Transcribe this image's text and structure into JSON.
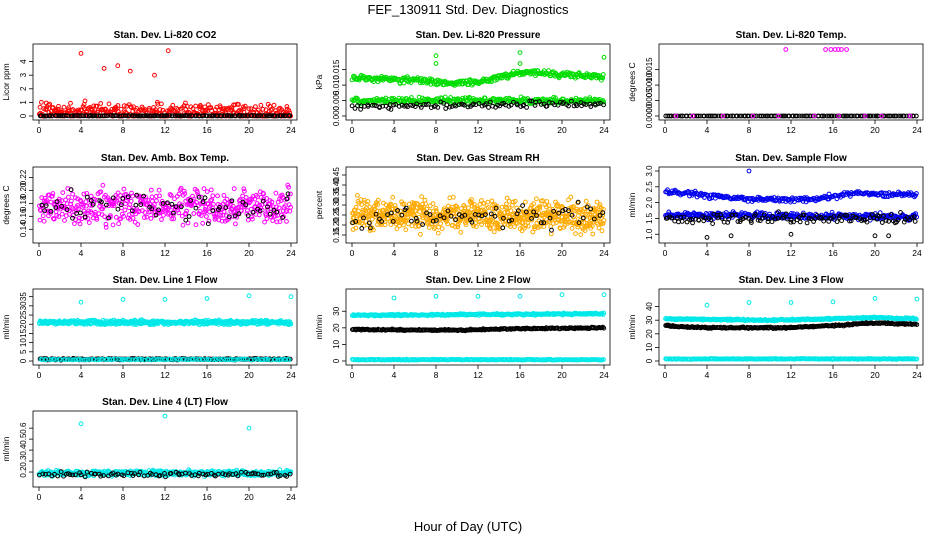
{
  "figure": {
    "title": "FEF_130911  Std. Dev. Diagnostics",
    "xlabel": "Hour of Day (UTC)"
  },
  "chart_data": [
    {
      "type": "scatter",
      "title": "Stan. Dev. Li-820 CO2",
      "ylabel": "Licor ppm",
      "xlim": [
        0,
        24
      ],
      "ylim": [
        0,
        5
      ],
      "x_ticks": [
        0,
        4,
        8,
        12,
        16,
        20,
        24
      ],
      "y_ticks": [
        0,
        1,
        2,
        3,
        4
      ],
      "series": [
        {
          "color": "#ff0000",
          "pattern": "noisy",
          "points": [
            [
              0.1,
              0.3
            ],
            [
              24,
              0.2
            ]
          ],
          "noise": 1.0,
          "n": 380,
          "outliers": [
            [
              4,
              4.6
            ],
            [
              12.3,
              4.8
            ],
            [
              6.2,
              3.5
            ],
            [
              8.7,
              3.3
            ],
            [
              11,
              3.0
            ],
            [
              7.5,
              3.7
            ]
          ]
        },
        {
          "color": "#000000",
          "pattern": "noisy",
          "points": [
            [
              0.1,
              0.02
            ],
            [
              24,
              0.02
            ]
          ],
          "noise": 0.03,
          "n": 140
        }
      ]
    },
    {
      "type": "scatter",
      "title": "Stan. Dev. Li-820 Pressure",
      "ylabel": "kPa",
      "xlim": [
        0,
        24
      ],
      "ylim": [
        0,
        0.022
      ],
      "x_ticks": [
        0,
        4,
        8,
        12,
        16,
        20,
        24
      ],
      "y_ticks": [
        0.0,
        0.005,
        0.01,
        0.015
      ],
      "series": [
        {
          "color": "#00dd00",
          "pattern": "noisy",
          "points": [
            [
              0,
              0.0125
            ],
            [
              6,
              0.0115
            ],
            [
              9,
              0.0105
            ],
            [
              12,
              0.011
            ],
            [
              16,
              0.014
            ],
            [
              20,
              0.0135
            ],
            [
              24,
              0.0125
            ]
          ],
          "noise": 0.0015,
          "n": 330,
          "outliers": [
            [
              8,
              0.0195
            ],
            [
              16,
              0.0205
            ],
            [
              24,
              0.019
            ],
            [
              8,
              0.017
            ],
            [
              16,
              0.017
            ]
          ]
        },
        {
          "color": "#00dd00",
          "pattern": "noisy",
          "points": [
            [
              0,
              0.005
            ],
            [
              24,
              0.005
            ]
          ],
          "noise": 0.0015,
          "n": 300
        },
        {
          "color": "#000000",
          "pattern": "noisy",
          "points": [
            [
              0,
              0.003
            ],
            [
              24,
              0.004
            ]
          ],
          "noise": 0.0015,
          "n": 110
        }
      ]
    },
    {
      "type": "scatter",
      "title": "Stan. Dev. Li-820 Temp.",
      "ylabel": "degrees C",
      "xlim": [
        0,
        24
      ],
      "ylim": [
        0,
        0.0022
      ],
      "x_ticks": [
        0,
        4,
        8,
        12,
        16,
        20,
        24
      ],
      "y_ticks": [
        0.0,
        0.0005,
        0.001,
        0.0015
      ],
      "series": [
        {
          "color": "#000000",
          "pattern": "noisy",
          "points": [
            [
              0,
              0
            ],
            [
              24,
              0
            ]
          ],
          "noise": 0.0,
          "n": 130
        },
        {
          "color": "#ff00ff",
          "pattern": "noisy",
          "points": [
            [
              0,
              0
            ],
            [
              24,
              0
            ]
          ],
          "noise": 0.0,
          "n": 10,
          "outliers": [
            [
              11.5,
              0.00215
            ],
            [
              15.3,
              0.00215
            ],
            [
              16.2,
              0.00215
            ],
            [
              16.8,
              0.00215
            ],
            [
              17.3,
              0.00215
            ],
            [
              16.5,
              0.00215
            ],
            [
              15.8,
              0.00215
            ]
          ]
        }
      ]
    },
    {
      "type": "scatter",
      "title": "Stan. Dev. Amb. Box Temp.",
      "ylabel": "degrees C",
      "xlim": [
        0,
        24
      ],
      "ylim": [
        0.125,
        0.23
      ],
      "x_ticks": [
        0,
        4,
        8,
        12,
        16,
        20,
        24
      ],
      "y_ticks": [
        0.14,
        0.16,
        0.18,
        0.2,
        0.22
      ],
      "series": [
        {
          "color": "#ff00ff",
          "pattern": "noisy",
          "points": [
            [
              0,
              0.175
            ],
            [
              24,
              0.175
            ]
          ],
          "noise": 0.04,
          "n": 470
        },
        {
          "color": "#000000",
          "pattern": "noisy",
          "points": [
            [
              0,
              0.175
            ],
            [
              24,
              0.175
            ]
          ],
          "noise": 0.035,
          "n": 70
        }
      ]
    },
    {
      "type": "scatter",
      "title": "Stan. Dev. Gas Stream RH",
      "ylabel": "percent",
      "xlim": [
        0,
        24
      ],
      "ylim": [
        0.13,
        0.47
      ],
      "x_ticks": [
        0,
        4,
        8,
        12,
        16,
        20,
        24
      ],
      "y_ticks": [
        0.15,
        0.2,
        0.25,
        0.3,
        0.35,
        0.4,
        0.45
      ],
      "series": [
        {
          "color": "#ffaa00",
          "pattern": "noisy",
          "points": [
            [
              0,
              0.25
            ],
            [
              24,
              0.24
            ]
          ],
          "noise": 0.11,
          "n": 700
        },
        {
          "color": "#000000",
          "pattern": "noisy",
          "points": [
            [
              0,
              0.24
            ],
            [
              24,
              0.24
            ]
          ],
          "noise": 0.09,
          "n": 70
        }
      ]
    },
    {
      "type": "scatter",
      "title": "Stan. Dev. Sample Flow",
      "ylabel": "ml/min",
      "xlim": [
        0,
        24
      ],
      "ylim": [
        0.85,
        3.0
      ],
      "x_ticks": [
        0,
        4,
        8,
        12,
        16,
        20,
        24
      ],
      "y_ticks": [
        1.0,
        1.5,
        2.0,
        2.5,
        3.0
      ],
      "series": [
        {
          "color": "#0000ee",
          "pattern": "noisy",
          "points": [
            [
              0,
              2.35
            ],
            [
              8,
              2.1
            ],
            [
              14,
              2.1
            ],
            [
              18,
              2.3
            ],
            [
              24,
              2.25
            ]
          ],
          "noise": 0.12,
          "n": 260,
          "outliers": [
            [
              8,
              3.0
            ]
          ]
        },
        {
          "color": "#0000ee",
          "pattern": "noisy",
          "points": [
            [
              0,
              1.6
            ],
            [
              24,
              1.55
            ]
          ],
          "noise": 0.15,
          "n": 330
        },
        {
          "color": "#000000",
          "pattern": "noisy",
          "points": [
            [
              0,
              1.5
            ],
            [
              24,
              1.5
            ]
          ],
          "noise": 0.25,
          "n": 120,
          "outliers": [
            [
              4,
              0.9
            ],
            [
              6.3,
              0.95
            ],
            [
              12,
              1.0
            ],
            [
              20,
              0.95
            ],
            [
              21.3,
              0.95
            ]
          ]
        }
      ]
    },
    {
      "type": "scatter",
      "title": "Stan. Dev. Line 1 Flow",
      "ylabel": "ml/min",
      "xlim": [
        0,
        24
      ],
      "ylim": [
        0,
        37
      ],
      "x_ticks": [
        0,
        4,
        8,
        12,
        16,
        20,
        24
      ],
      "y_ticks": [
        0,
        5,
        10,
        15,
        20,
        25,
        30,
        35
      ],
      "series": [
        {
          "color": "#00e8e8",
          "pattern": "noisy",
          "points": [
            [
              0,
              21
            ],
            [
              24,
              21
            ]
          ],
          "noise": 1.6,
          "n": 520,
          "outliers": [
            [
              4,
              32
            ],
            [
              8,
              33.5
            ],
            [
              12,
              33.5
            ],
            [
              16,
              34
            ],
            [
              20,
              35.5
            ],
            [
              24,
              35
            ]
          ]
        },
        {
          "color": "#000000",
          "pattern": "noisy",
          "points": [
            [
              0,
              1.0
            ],
            [
              24,
              1.0
            ]
          ],
          "noise": 0.6,
          "n": 220
        },
        {
          "color": "#00e8e8",
          "pattern": "noisy",
          "points": [
            [
              0,
              0.8
            ],
            [
              24,
              0.8
            ]
          ],
          "noise": 0.4,
          "n": 120
        }
      ]
    },
    {
      "type": "scatter",
      "title": "Stan. Dev. Line 2 Flow",
      "ylabel": "ml/min",
      "xlim": [
        0,
        24
      ],
      "ylim": [
        0,
        41
      ],
      "x_ticks": [
        0,
        4,
        8,
        12,
        16,
        20,
        24
      ],
      "y_ticks": [
        0,
        10,
        20,
        30
      ],
      "series": [
        {
          "color": "#00e8e8",
          "pattern": "noisy",
          "points": [
            [
              0,
              27.5
            ],
            [
              24,
              28.5
            ]
          ],
          "noise": 0.8,
          "n": 330,
          "outliers": [
            [
              4,
              38
            ],
            [
              8,
              39
            ],
            [
              12,
              39
            ],
            [
              16,
              39
            ],
            [
              20,
              40
            ],
            [
              24,
              40
            ]
          ]
        },
        {
          "color": "#000000",
          "pattern": "noisy",
          "points": [
            [
              0,
              19
            ],
            [
              10,
              18.5
            ],
            [
              16,
              19.5
            ],
            [
              24,
              20
            ]
          ],
          "noise": 0.6,
          "n": 260
        },
        {
          "color": "#00e8e8",
          "pattern": "noisy",
          "points": [
            [
              0,
              0.8
            ],
            [
              24,
              0.8
            ]
          ],
          "noise": 0.4,
          "n": 250
        }
      ]
    },
    {
      "type": "scatter",
      "title": "Stan. Dev. Line 3 Flow",
      "ylabel": "ml/min",
      "xlim": [
        0,
        24
      ],
      "ylim": [
        0,
        50
      ],
      "x_ticks": [
        0,
        4,
        8,
        12,
        16,
        20,
        24
      ],
      "y_ticks": [
        0,
        10,
        20,
        30,
        40
      ],
      "series": [
        {
          "color": "#00e8e8",
          "pattern": "noisy",
          "points": [
            [
              0,
              31
            ],
            [
              10,
              30
            ],
            [
              16,
              31
            ],
            [
              20,
              32
            ],
            [
              24,
              31
            ]
          ],
          "noise": 0.8,
          "n": 330,
          "outliers": [
            [
              4,
              41
            ],
            [
              8,
              43
            ],
            [
              12,
              43
            ],
            [
              16,
              43.5
            ],
            [
              20,
              46
            ],
            [
              24,
              45.5
            ]
          ]
        },
        {
          "color": "#000000",
          "pattern": "noisy",
          "points": [
            [
              0,
              26
            ],
            [
              4,
              24.5
            ],
            [
              12,
              24.5
            ],
            [
              16,
              26
            ],
            [
              20,
              28
            ],
            [
              24,
              27
            ]
          ],
          "noise": 0.8,
          "n": 270
        },
        {
          "color": "#00e8e8",
          "pattern": "noisy",
          "points": [
            [
              0,
              1.5
            ],
            [
              24,
              1.5
            ]
          ],
          "noise": 0.5,
          "n": 260
        }
      ]
    },
    {
      "type": "scatter",
      "title": "Stan. Dev. Line 4 (LT) Flow",
      "ylabel": "ml/min",
      "xlim": [
        0,
        24
      ],
      "ylim": [
        0.1,
        0.72
      ],
      "x_ticks": [
        0,
        4,
        8,
        12,
        16,
        20,
        24
      ],
      "y_ticks": [
        0.2,
        0.3,
        0.4,
        0.5,
        0.6
      ],
      "series": [
        {
          "color": "#00e8e8",
          "pattern": "noisy",
          "points": [
            [
              0,
              0.19
            ],
            [
              24,
              0.19
            ]
          ],
          "noise": 0.035,
          "n": 500,
          "outliers": [
            [
              4,
              0.64
            ],
            [
              12,
              0.71
            ],
            [
              20,
              0.6
            ]
          ]
        },
        {
          "color": "#000000",
          "pattern": "noisy",
          "points": [
            [
              0,
              0.18
            ],
            [
              24,
              0.18
            ]
          ],
          "noise": 0.035,
          "n": 90
        }
      ]
    }
  ]
}
